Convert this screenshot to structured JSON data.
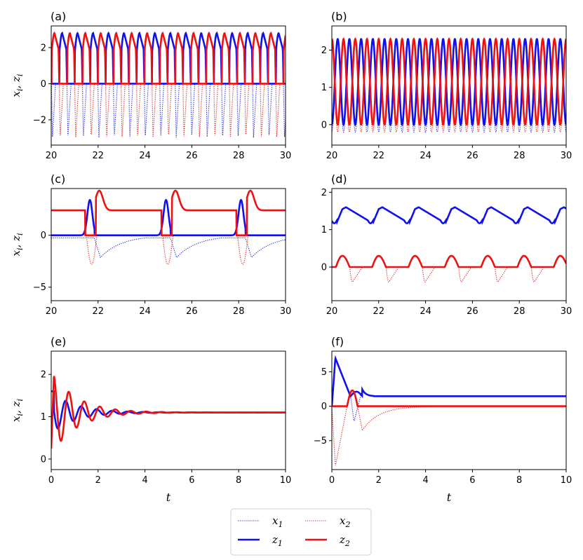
{
  "chart_data": [
    {
      "panel": "(a)",
      "type": "line",
      "xlim": [
        20,
        30
      ],
      "ylim": [
        -3.4,
        3.2
      ],
      "xticks": [
        20,
        22,
        24,
        26,
        28,
        30
      ],
      "yticks": [
        -2,
        0,
        2
      ],
      "xticklabels": [
        "20",
        "22",
        "24",
        "26",
        "28",
        "30"
      ],
      "yticklabels": [
        "−2",
        "0",
        "2"
      ],
      "ylabel": "x_i, z_i",
      "xlabel": "",
      "series": [
        {
          "name": "x1",
          "color": "#1f1fe0",
          "style": "dotted",
          "kind": "relax",
          "period": 0.66,
          "phase": 20.35,
          "low": -3.0,
          "peak": 2.8,
          "plateau": 1.8
        },
        {
          "name": "x2",
          "color": "#e01f1f",
          "style": "dotted",
          "kind": "relax",
          "period": 0.66,
          "phase": 20.02,
          "low": -3.0,
          "peak": 2.8,
          "plateau": 1.8
        },
        {
          "name": "z1",
          "color": "#1010f0",
          "style": "solid",
          "kind": "relax_clip",
          "period": 0.66,
          "phase": 20.35,
          "low": -3.0,
          "peak": 2.8,
          "plateau": 1.8
        },
        {
          "name": "z2",
          "color": "#f01010",
          "style": "solid",
          "kind": "relax_clip",
          "period": 0.66,
          "phase": 20.02,
          "low": -3.0,
          "peak": 2.8,
          "plateau": 1.8
        }
      ]
    },
    {
      "panel": "(b)",
      "type": "line",
      "xlim": [
        20,
        30
      ],
      "ylim": [
        -0.55,
        2.65
      ],
      "xticks": [
        20,
        22,
        24,
        26,
        28,
        30
      ],
      "yticks": [
        0,
        1,
        2
      ],
      "xticklabels": [
        "20",
        "22",
        "24",
        "26",
        "28",
        "30"
      ],
      "yticklabels": [
        "0",
        "1",
        "2"
      ],
      "ylabel": "",
      "xlabel": "",
      "series": [
        {
          "name": "x1",
          "color": "#1f1fe0",
          "style": "dotted",
          "kind": "sine_dip",
          "period": 0.5,
          "phase": 20.0,
          "min": -0.2,
          "max": 2.3
        },
        {
          "name": "x2",
          "color": "#e01f1f",
          "style": "dotted",
          "kind": "sine_dip",
          "period": 0.5,
          "phase": 20.25,
          "min": -0.2,
          "max": 2.3
        },
        {
          "name": "z1",
          "color": "#1010f0",
          "style": "solid",
          "kind": "sine",
          "period": 0.5,
          "phase": 20.0,
          "min": 0.0,
          "max": 2.3
        },
        {
          "name": "z2",
          "color": "#f01010",
          "style": "solid",
          "kind": "sine",
          "period": 0.5,
          "phase": 20.25,
          "min": 0.0,
          "max": 2.3
        }
      ]
    },
    {
      "panel": "(c)",
      "type": "line",
      "xlim": [
        20,
        30
      ],
      "ylim": [
        -6.3,
        4.5
      ],
      "xticks": [
        20,
        22,
        24,
        26,
        28,
        30
      ],
      "yticks": [
        -5,
        0
      ],
      "xticklabels": [
        "20",
        "22",
        "24",
        "26",
        "28",
        "30"
      ],
      "yticklabels": [
        "−5",
        "0"
      ],
      "ylabel": "x_i, z_i",
      "xlabel": "",
      "series": [
        {
          "name": "x1",
          "color": "#1f1fe0",
          "style": "dotted",
          "kind": "burst_x1",
          "events": [
            21.6,
            24.85,
            28.05
          ]
        },
        {
          "name": "x2",
          "color": "#e01f1f",
          "style": "dotted",
          "kind": "burst_x2",
          "events": [
            21.6,
            24.85,
            28.05
          ]
        },
        {
          "name": "z1",
          "color": "#1010f0",
          "style": "solid",
          "kind": "burst_z1",
          "events": [
            21.6,
            24.85,
            28.05
          ]
        },
        {
          "name": "z2",
          "color": "#f01010",
          "style": "solid",
          "kind": "burst_z2",
          "events": [
            21.6,
            24.85,
            28.05
          ]
        }
      ]
    },
    {
      "panel": "(d)",
      "type": "line",
      "xlim": [
        20,
        30
      ],
      "ylim": [
        -0.9,
        2.1
      ],
      "xticks": [
        20,
        22,
        24,
        26,
        28,
        30
      ],
      "yticks": [
        0,
        1,
        2
      ],
      "xticklabels": [
        "20",
        "22",
        "24",
        "26",
        "28",
        "30"
      ],
      "yticklabels": [
        "0",
        "1",
        "2"
      ],
      "ylabel": "",
      "xlabel": "",
      "series": [
        {
          "name": "x1",
          "color": "#1f1fe0",
          "style": "dotted",
          "kind": "d_z1",
          "period": 1.55,
          "phase": 20.45
        },
        {
          "name": "x2",
          "color": "#e01f1f",
          "style": "dotted",
          "kind": "d_x2",
          "period": 1.55,
          "phase": 20.45
        },
        {
          "name": "z1",
          "color": "#1010f0",
          "style": "solid",
          "kind": "d_z1",
          "period": 1.55,
          "phase": 20.45
        },
        {
          "name": "z2",
          "color": "#f01010",
          "style": "solid",
          "kind": "d_z2",
          "period": 1.55,
          "phase": 20.45
        }
      ]
    },
    {
      "panel": "(e)",
      "type": "line",
      "xlim": [
        0,
        10
      ],
      "ylim": [
        -0.25,
        2.55
      ],
      "xticks": [
        0,
        2,
        4,
        6,
        8,
        10
      ],
      "yticks": [
        0,
        1,
        2
      ],
      "xticklabels": [
        "0",
        "2",
        "4",
        "6",
        "8",
        "10"
      ],
      "yticklabels": [
        "0",
        "1",
        "2"
      ],
      "ylabel": "x_i, z_i",
      "xlabel": "t",
      "series": [
        {
          "name": "x1",
          "color": "#1f1fe0",
          "style": "dotted",
          "kind": "damped",
          "start": 1.6,
          "base": 1.1,
          "amp": 0.5,
          "decay": 0.95,
          "omega": 9.5,
          "ph": 0.35
        },
        {
          "name": "x2",
          "color": "#e01f1f",
          "style": "dotted",
          "kind": "damped",
          "start": 0.25,
          "base": 1.1,
          "amp": 1.0,
          "decay": 0.95,
          "omega": 9.5,
          "ph": -0.9
        },
        {
          "name": "z1",
          "color": "#1010f0",
          "style": "solid",
          "kind": "damped",
          "start": 1.6,
          "base": 1.1,
          "amp": 0.5,
          "decay": 0.95,
          "omega": 9.5,
          "ph": 0.35
        },
        {
          "name": "z2",
          "color": "#f01010",
          "style": "solid",
          "kind": "damped",
          "start": 0.25,
          "base": 1.1,
          "amp": 1.0,
          "decay": 0.95,
          "omega": 9.5,
          "ph": -0.9
        }
      ]
    },
    {
      "panel": "(f)",
      "type": "line",
      "xlim": [
        0,
        10
      ],
      "ylim": [
        -9.2,
        8.0
      ],
      "xticks": [
        0,
        2,
        4,
        6,
        8,
        10
      ],
      "yticks": [
        -5,
        0,
        5
      ],
      "xticklabels": [
        "0",
        "2",
        "4",
        "6",
        "8",
        "10"
      ],
      "yticklabels": [
        "−5",
        "0",
        "5"
      ],
      "ylabel": "",
      "xlabel": "t",
      "series": [
        {
          "name": "x1",
          "color": "#1f1fe0",
          "style": "dotted",
          "kind": "f_x1"
        },
        {
          "name": "x2",
          "color": "#e01f1f",
          "style": "dotted",
          "kind": "f_x2"
        },
        {
          "name": "z1",
          "color": "#1010f0",
          "style": "solid",
          "kind": "f_z1"
        },
        {
          "name": "z2",
          "color": "#f01010",
          "style": "solid",
          "kind": "f_z2"
        }
      ]
    }
  ],
  "legend": {
    "placement": "bottom-center",
    "entries": [
      {
        "label_main": "x",
        "label_sub": "1",
        "color": "#1f1fe0",
        "style": "dotted"
      },
      {
        "label_main": "x",
        "label_sub": "2",
        "color": "#e01f1f",
        "style": "dotted"
      },
      {
        "label_main": "z",
        "label_sub": "1",
        "color": "#1010f0",
        "style": "solid"
      },
      {
        "label_main": "z",
        "label_sub": "2",
        "color": "#f01010",
        "style": "solid"
      }
    ]
  }
}
